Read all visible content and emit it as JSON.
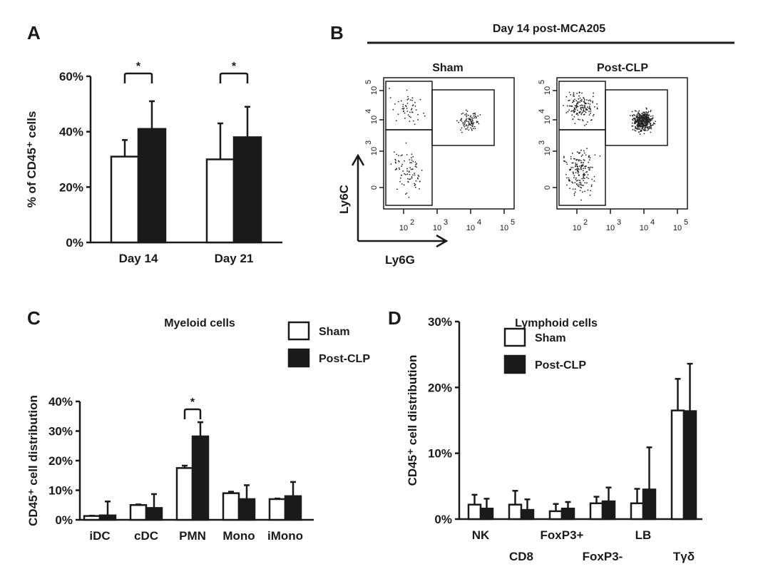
{
  "panels": {
    "a": "A",
    "b": "B",
    "c": "C",
    "d": "D"
  },
  "chart_data": [
    {
      "id": "A",
      "type": "bar",
      "title": "",
      "ylabel": "% of CD45⁺ cells",
      "yticks": [
        "0%",
        "20%",
        "40%",
        "60%"
      ],
      "ylim": [
        0,
        60
      ],
      "categories": [
        "Day 14",
        "Day 21"
      ],
      "series": [
        {
          "name": "Sham",
          "color": "#ffffff",
          "values": [
            31,
            30
          ],
          "err_top": [
            37,
            43
          ]
        },
        {
          "name": "Post-CLP",
          "color": "#1a1a1a",
          "values": [
            41,
            38
          ],
          "err_top": [
            51,
            49
          ]
        }
      ],
      "significance": [
        "*",
        "*"
      ]
    },
    {
      "id": "C",
      "type": "bar",
      "title": "Myeloid cells",
      "ylabel": "CD45⁺ cell distribution",
      "yticks": [
        "0%",
        "10%",
        "20%",
        "30%",
        "40%"
      ],
      "ylim": [
        0,
        40
      ],
      "categories": [
        "iDC",
        "cDC",
        "PMN",
        "Mono",
        "iMono"
      ],
      "series": [
        {
          "name": "Sham",
          "color": "#ffffff",
          "values": [
            1.3,
            5.0,
            17.5,
            9.0,
            7.0
          ],
          "err_top": [
            1.4,
            5.2,
            18.3,
            9.5,
            7.2
          ]
        },
        {
          "name": "Post-CLP",
          "color": "#1a1a1a",
          "values": [
            1.5,
            4.0,
            28.2,
            7.0,
            8.0
          ],
          "err_top": [
            6.2,
            8.7,
            33.0,
            11.7,
            12.8
          ]
        }
      ],
      "significance": [
        "",
        "",
        "*",
        "",
        ""
      ],
      "legend": {
        "sham": "Sham",
        "post": "Post-CLP",
        "placement": "top-right"
      }
    },
    {
      "id": "D",
      "type": "bar",
      "title": "Lymphoid cells",
      "ylabel": "CD45⁺ cell distribution",
      "yticks": [
        "0%",
        "10%",
        "20%",
        "30%"
      ],
      "ylim": [
        0,
        30
      ],
      "categories": [
        "NK",
        "CD8",
        "FoxP3+",
        "FoxP3-",
        "LB",
        "Tγδ"
      ],
      "series": [
        {
          "name": "Sham",
          "color": "#ffffff",
          "values": [
            2.2,
            2.2,
            1.2,
            2.4,
            2.4,
            16.5
          ],
          "err_top": [
            3.7,
            4.3,
            2.3,
            3.4,
            4.6,
            21.3
          ]
        },
        {
          "name": "Post-CLP",
          "color": "#1a1a1a",
          "values": [
            1.6,
            1.4,
            1.6,
            2.7,
            4.5,
            16.4
          ],
          "err_top": [
            3.1,
            3.0,
            2.6,
            4.8,
            10.9,
            23.6
          ]
        }
      ],
      "legend": {
        "sham": "Sham",
        "post": "Post-CLP",
        "placement": "top-left"
      }
    },
    {
      "id": "B",
      "type": "scatter",
      "title": "Day 14 post-MCA205",
      "xlabel": "Ly6G",
      "ylabel": "Ly6C",
      "plots": [
        "Sham",
        "Post-CLP"
      ],
      "xticks": [
        "10",
        "10",
        "10",
        "10"
      ],
      "xtick_exp": [
        "2",
        "3",
        "4",
        "5"
      ],
      "yticks": [
        "0",
        "10",
        "10",
        "10"
      ],
      "ytick_exp": [
        "",
        "3",
        "4",
        "5"
      ]
    }
  ]
}
